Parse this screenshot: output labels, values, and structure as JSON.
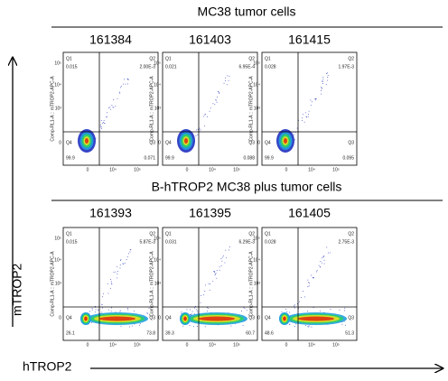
{
  "sections": [
    {
      "title": "MC38 tumor cells",
      "panels": [
        {
          "label": "161384",
          "q1": "0.015",
          "q2": "2.00E-3",
          "q3": "0.071",
          "q4": "99.9"
        },
        {
          "label": "161403",
          "q1": "0.021",
          "q2": "6.95E-4",
          "q3": "0.088",
          "q4": "99.9"
        },
        {
          "label": "161415",
          "q1": "0.028",
          "q2": "1.97E-3",
          "q3": "0.095",
          "q4": "99.9"
        }
      ]
    },
    {
      "title": "B-hTROP2 MC38 plus tumor cells",
      "panels": [
        {
          "label": "161393",
          "q1": "0.015",
          "q2": "5.87E-3",
          "q3": "73.8",
          "q4": "26.1"
        },
        {
          "label": "161395",
          "q1": "0.031",
          "q2": "6.29E-3",
          "q3": "60.7",
          "q4": "39.3"
        },
        {
          "label": "161405",
          "q1": "0.028",
          "q2": "2.75E-3",
          "q3": "51.3",
          "q4": "48.6"
        }
      ]
    }
  ],
  "quadrant_names": {
    "q1": "Q1",
    "q2": "Q2",
    "q3": "Q3",
    "q4": "Q4"
  },
  "panel_y_axis_label": "Comp-RL1-A :: mTROP2-APC-A",
  "panel_y_ticks": [
    "10⁵",
    "10⁴",
    "10³",
    "0"
  ],
  "panel_x_ticks": [
    "0",
    "10⁴",
    "10⁵"
  ],
  "axis_titles": {
    "y": "mTROP2",
    "x": "hTROP2"
  }
}
